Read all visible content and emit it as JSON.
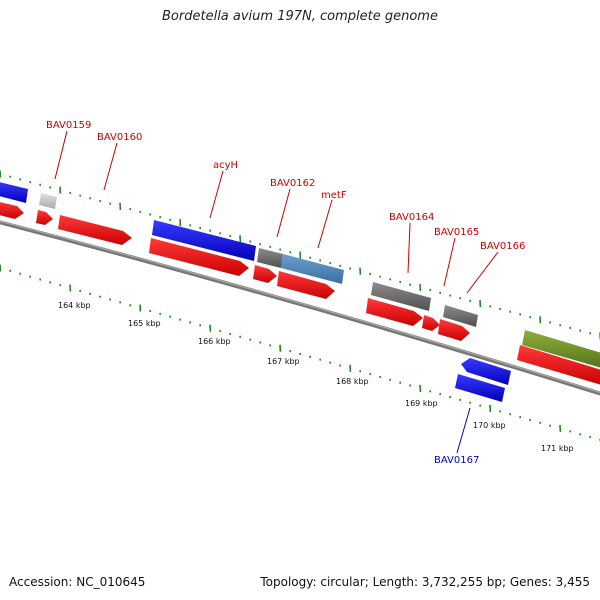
{
  "title": "Bordetella avium 197N, complete genome",
  "footer": {
    "accession": "Accession: NC_010645",
    "topology": "Topology: circular; Length: 3,732,255 bp; Genes: 3,455"
  },
  "colors": {
    "strand_forward": "#0000dd",
    "cds": "#ee0000",
    "gray_gene": "#707070",
    "light_gray_gene": "#c8c8c8",
    "steel_blue_gene": "#4682b4",
    "olive_gene": "#6b8e23",
    "backbone": "#888888",
    "tick": "#1a8a1a",
    "label_red": "#cc0000",
    "label_blue": "#0000cc"
  },
  "scale": {
    "unit": "kbp",
    "labels": [
      "164 kbp",
      "165 kbp",
      "166 kbp",
      "167 kbp",
      "168 kbp",
      "169 kbp",
      "170 kbp",
      "171 kbp"
    ]
  },
  "genes": [
    {
      "label": "BAV0159",
      "color": "label_red"
    },
    {
      "label": "BAV0160",
      "color": "label_red"
    },
    {
      "label": "acyH",
      "color": "label_red"
    },
    {
      "label": "BAV0162",
      "color": "label_red"
    },
    {
      "label": "metF",
      "color": "label_red"
    },
    {
      "label": "BAV0164",
      "color": "label_red"
    },
    {
      "label": "BAV0165",
      "color": "label_red"
    },
    {
      "label": "BAV0166",
      "color": "label_red"
    },
    {
      "label": "BAV0167",
      "color": "label_blue"
    }
  ]
}
